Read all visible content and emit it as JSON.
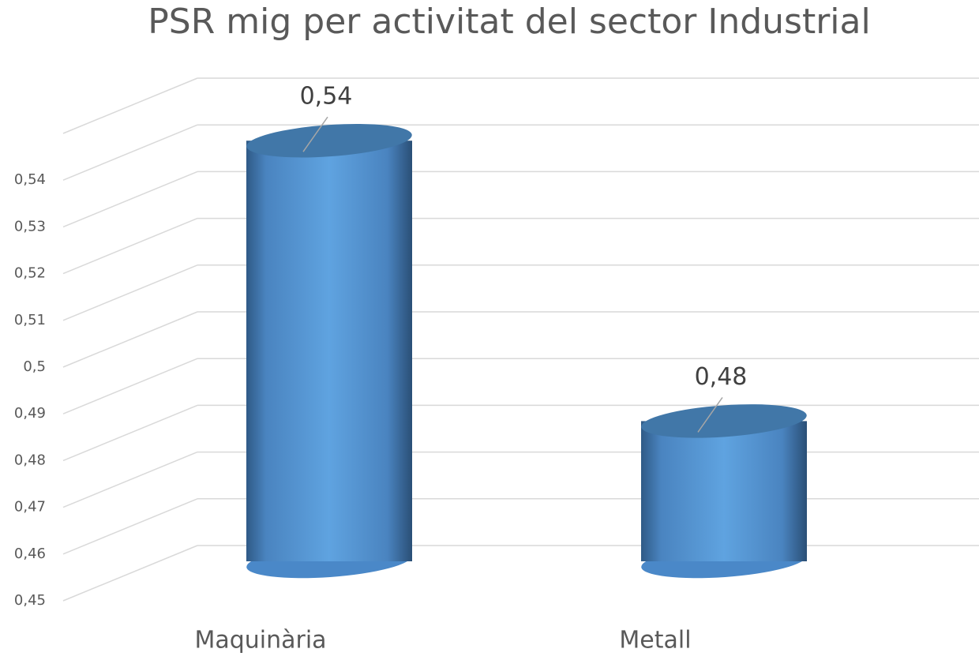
{
  "chart_data": {
    "type": "bar3d",
    "title": "PSR mig per activitat del sector Industrial",
    "categories": [
      "Maquinària",
      "Metall"
    ],
    "values": [
      0.54,
      0.48
    ],
    "value_labels": [
      "0,54",
      "0,48"
    ],
    "color": "#5b9bd5",
    "ylim": [
      0.45,
      0.55
    ],
    "yticks": [
      {
        "value": 0.45,
        "label": "0,45"
      },
      {
        "value": 0.46,
        "label": "0,46"
      },
      {
        "value": 0.47,
        "label": "0,47"
      },
      {
        "value": 0.48,
        "label": "0,48"
      },
      {
        "value": 0.49,
        "label": "0,49"
      },
      {
        "value": 0.5,
        "label": "0,5"
      },
      {
        "value": 0.51,
        "label": "0,51"
      },
      {
        "value": 0.52,
        "label": "0,52"
      },
      {
        "value": 0.53,
        "label": "0,53"
      },
      {
        "value": 0.54,
        "label": "0,54"
      }
    ],
    "grid": true
  }
}
